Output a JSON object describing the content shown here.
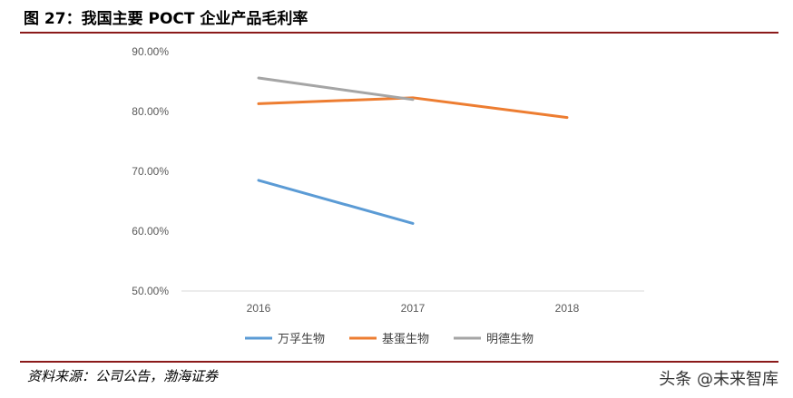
{
  "figure_title": "图 27：我国主要 POCT 企业产品毛利率",
  "source": "资料来源：公司公告，渤海证券",
  "watermark": "头条 @未来智库",
  "chart_data": {
    "type": "line",
    "title": "",
    "xlabel": "",
    "ylabel": "",
    "categories": [
      "2016",
      "2017",
      "2018"
    ],
    "y_ticks": [
      "90.00%",
      "80.00%",
      "70.00%",
      "60.00%",
      "50.00%"
    ],
    "ylim": [
      0.5,
      0.9
    ],
    "grid": false,
    "legend_position": "bottom",
    "series": [
      {
        "name": "万孚生物",
        "color": "#5b9bd5",
        "values": [
          0.685,
          0.613,
          null
        ]
      },
      {
        "name": "基蛋生物",
        "color": "#ed7d31",
        "values": [
          0.813,
          0.823,
          0.79
        ]
      },
      {
        "name": "明德生物",
        "color": "#a5a5a5",
        "values": [
          0.856,
          0.82,
          null
        ]
      }
    ]
  }
}
